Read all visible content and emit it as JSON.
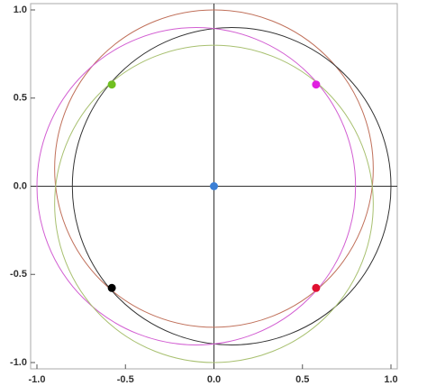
{
  "chart_data": {
    "type": "scatter",
    "xlim": [
      -1.0,
      1.0
    ],
    "ylim": [
      -1.0,
      1.0
    ],
    "xticks": [
      {
        "value": -1,
        "label": "-1.0"
      },
      {
        "value": -0.5,
        "label": "-0.5"
      },
      {
        "value": 0,
        "label": "0.0"
      },
      {
        "value": 0.5,
        "label": "0.5"
      },
      {
        "value": 1,
        "label": "1.0"
      }
    ],
    "yticks": [
      {
        "value": -1,
        "label": "-1.0"
      },
      {
        "value": -0.5,
        "label": "-0.5"
      },
      {
        "value": 0,
        "label": "0.0"
      },
      {
        "value": 0.5,
        "label": "0.5"
      },
      {
        "value": 1,
        "label": "1.0"
      }
    ],
    "circles": [
      {
        "cx": 0,
        "cy": 0.1,
        "r": 0.9,
        "color": "#c0705a"
      },
      {
        "cx": 0.1,
        "cy": 0,
        "r": 0.9,
        "color": "#333333"
      },
      {
        "cx": -0.1,
        "cy": 0,
        "r": 0.9,
        "color": "#d25ed2"
      },
      {
        "cx": 0,
        "cy": -0.1,
        "r": 0.9,
        "color": "#a8c070"
      }
    ],
    "points": {
      "x": [
        0,
        0.577,
        -0.577,
        -0.577,
        0.577
      ],
      "y": [
        0,
        0.577,
        0.577,
        -0.577,
        -0.577
      ],
      "colors": [
        "#3a7fd5",
        "#e020e0",
        "#70c020",
        "#000000",
        "#e01030"
      ]
    }
  }
}
